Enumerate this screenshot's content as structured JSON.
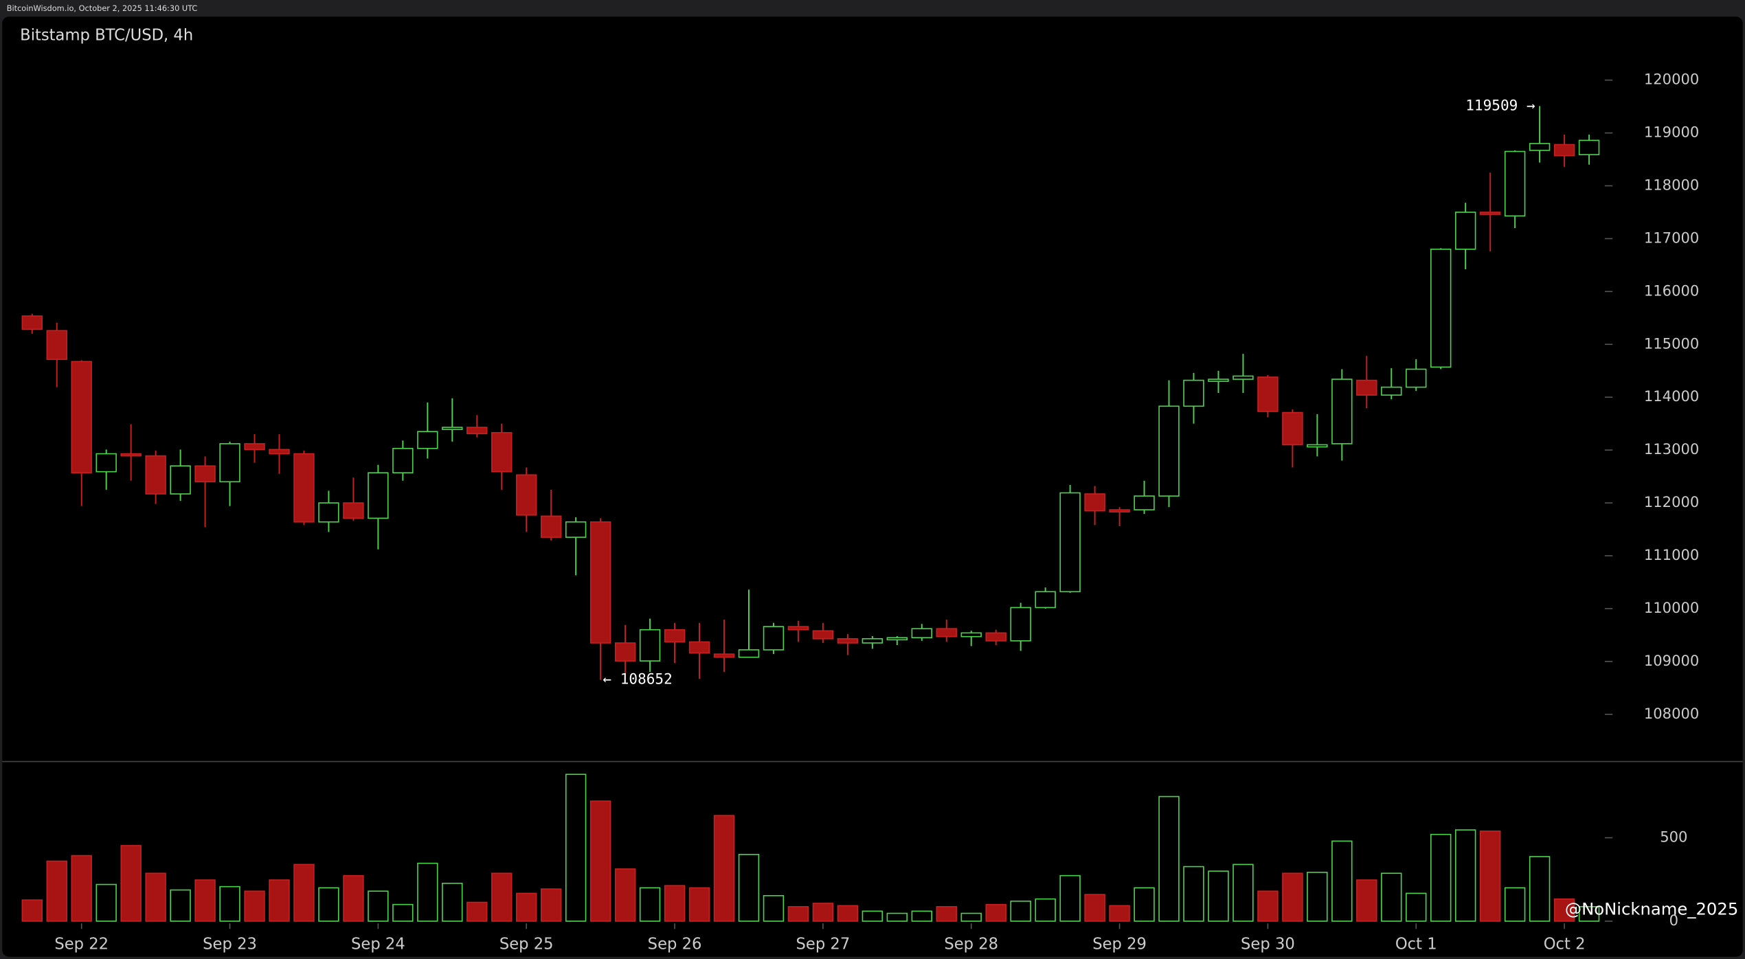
{
  "header": "BitcoinWisdom.io, October 2, 2025 11:46:30 UTC",
  "watermark": "@NoNickname_2025",
  "chart_data": {
    "type": "candlestick",
    "title": "Bitstamp BTC/USD, 4h",
    "up_color": "#4cd24c",
    "down_color": "#a81414",
    "xlim": [
      -1.3,
      64.4
    ],
    "xticks": [
      {
        "value": 2,
        "label": "Sep 22"
      },
      {
        "value": 8,
        "label": "Sep 23"
      },
      {
        "value": 14,
        "label": "Sep 24"
      },
      {
        "value": 20,
        "label": "Sep 25"
      },
      {
        "value": 26,
        "label": "Sep 26"
      },
      {
        "value": 32,
        "label": "Sep 27"
      },
      {
        "value": 38,
        "label": "Sep 28"
      },
      {
        "value": 44,
        "label": "Sep 29"
      },
      {
        "value": 50,
        "label": "Sep 30"
      },
      {
        "value": 56,
        "label": "Oct 1"
      },
      {
        "value": 62,
        "label": "Oct 2"
      }
    ],
    "ylim": [
      107117,
      121200
    ],
    "yticks": [
      108000,
      109000,
      110000,
      111000,
      112000,
      113000,
      114000,
      115000,
      116000,
      117000,
      118000,
      119000,
      120000
    ],
    "annotations": [
      {
        "text": "119509 →",
        "value": 119509
      },
      {
        "text": "← 108652",
        "value": 108652
      }
    ],
    "open": [
      115537,
      115260,
      114675,
      112590,
      112930,
      112890,
      112170,
      112700,
      112400,
      113120,
      113010,
      112930,
      111640,
      112000,
      111710,
      112570,
      113030,
      113390,
      113430,
      113330,
      112530,
      111750,
      111350,
      111640,
      109350,
      109010,
      109600,
      109370,
      109140,
      109080,
      109220,
      109660,
      109580,
      109430,
      109350,
      109410,
      109450,
      109620,
      109470,
      109540,
      109390,
      110020,
      110320,
      112170,
      111870,
      111870,
      112130,
      113830,
      114300,
      114340,
      114380,
      113710,
      113060,
      113120,
      114320,
      114040,
      114190,
      114570,
      116800,
      117500,
      117430,
      118670,
      118780,
      118590
    ],
    "high": [
      115580,
      115410,
      114700,
      113010,
      113490,
      112990,
      113010,
      112880,
      113160,
      113300,
      113300,
      112990,
      112230,
      112480,
      112720,
      113180,
      113900,
      113980,
      113660,
      113500,
      112670,
      112250,
      111730,
      111710,
      109690,
      109810,
      109730,
      109730,
      109790,
      110360,
      109730,
      109770,
      109730,
      109520,
      109480,
      109480,
      109710,
      109790,
      109580,
      109600,
      110110,
      110400,
      112340,
      112320,
      111920,
      112420,
      114320,
      114460,
      114500,
      114820,
      114420,
      113770,
      113680,
      114530,
      114780,
      114550,
      114720,
      116820,
      117680,
      118250,
      118670,
      119509,
      118970,
      118970
    ],
    "low": [
      115200,
      114190,
      111940,
      112250,
      112420,
      111980,
      112040,
      111540,
      111940,
      112760,
      112550,
      111580,
      111450,
      111660,
      111120,
      112420,
      112840,
      113160,
      113240,
      112250,
      111450,
      111290,
      110630,
      108652,
      108670,
      108800,
      108970,
      108670,
      108800,
      109080,
      109140,
      109370,
      109350,
      109120,
      109240,
      109310,
      109390,
      109370,
      109290,
      109310,
      109200,
      110000,
      110300,
      111580,
      111560,
      111790,
      111920,
      113500,
      114080,
      114080,
      113620,
      112670,
      112880,
      112800,
      113790,
      113960,
      114120,
      114530,
      116420,
      116760,
      117200,
      118440,
      118360,
      118400
    ],
    "close": [
      115284,
      114716,
      112570,
      112930,
      112890,
      112170,
      112700,
      112400,
      113120,
      113010,
      112930,
      111640,
      112000,
      111710,
      112570,
      113030,
      113350,
      113430,
      113310,
      112590,
      111770,
      111350,
      111640,
      109350,
      109010,
      109600,
      109370,
      109160,
      109080,
      109220,
      109660,
      109600,
      109430,
      109350,
      109430,
      109450,
      109620,
      109470,
      109540,
      109390,
      110020,
      110320,
      112190,
      111850,
      111830,
      112130,
      113830,
      114320,
      114340,
      114400,
      113730,
      113100,
      113100,
      114340,
      114040,
      114190,
      114530,
      116800,
      117500,
      117460,
      118650,
      118800,
      118570,
      118860
    ],
    "volume": {
      "ylim": [
        0,
        947
      ],
      "yticks": [
        0,
        500
      ],
      "values": [
        127,
        360,
        393,
        220,
        453,
        287,
        187,
        247,
        207,
        180,
        247,
        340,
        200,
        273,
        180,
        100,
        347,
        227,
        113,
        287,
        167,
        193,
        880,
        720,
        313,
        200,
        213,
        200,
        633,
        400,
        153,
        87,
        107,
        93,
        60,
        47,
        60,
        87,
        47,
        100,
        120,
        133,
        273,
        160,
        93,
        200,
        747,
        327,
        300,
        340,
        180,
        287,
        293,
        480,
        247,
        287,
        167,
        520,
        547,
        540,
        200,
        387,
        133,
        87
      ]
    }
  }
}
